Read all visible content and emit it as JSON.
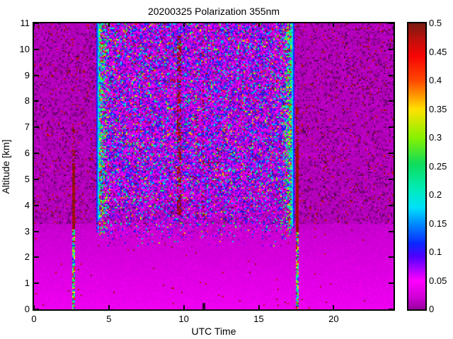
{
  "title": "20200325 Polarization 355nm",
  "axes": {
    "xlabel": "UTC Time",
    "ylabel": "Altitude [km]",
    "x_range": [
      0,
      24
    ],
    "y_range": [
      0,
      11
    ],
    "x_ticks": [
      0,
      5,
      10,
      15,
      20
    ],
    "y_ticks": [
      0,
      1,
      2,
      3,
      4,
      5,
      6,
      7,
      8,
      9,
      10,
      11
    ]
  },
  "colorbar": {
    "range": [
      0,
      0.5
    ],
    "tick_values": [
      0,
      0.05,
      0.1,
      0.15,
      0.2,
      0.25,
      0.3,
      0.35,
      0.4,
      0.45,
      0.5
    ],
    "tick_labels": [
      "0",
      "0.05",
      "0.1",
      "0.15",
      "0.2",
      "0.25",
      "0.3",
      "0.35",
      "0.4",
      "0.45",
      "0.5"
    ]
  },
  "chart_data": {
    "type": "heatmap",
    "title": "20200325 Polarization 355nm",
    "xlabel": "UTC Time",
    "ylabel": "Altitude [km]",
    "x_range": [
      0,
      24
    ],
    "y_range": [
      0,
      11
    ],
    "value_range": [
      0,
      0.5
    ],
    "grid": false,
    "legend": "colorbar right, 0 to 0.5 step 0.05",
    "colormap": "reversed-HSV style: magenta -> purple -> blue -> cyan -> green -> yellow -> orange -> red -> dark red",
    "colormap_stops": [
      [
        0.0,
        150,
        0,
        158
      ],
      [
        0.02,
        205,
        0,
        212
      ],
      [
        0.05,
        255,
        0,
        255
      ],
      [
        0.092,
        80,
        0,
        255
      ],
      [
        0.115,
        10,
        40,
        255
      ],
      [
        0.15,
        0,
        140,
        255
      ],
      [
        0.178,
        0,
        225,
        250
      ],
      [
        0.21,
        0,
        235,
        185
      ],
      [
        0.255,
        15,
        220,
        90
      ],
      [
        0.3,
        135,
        242,
        0
      ],
      [
        0.35,
        255,
        224,
        0
      ],
      [
        0.4,
        255,
        72,
        0
      ],
      [
        0.442,
        248,
        5,
        5
      ],
      [
        0.472,
        190,
        16,
        12
      ],
      [
        0.5,
        120,
        27,
        18
      ]
    ],
    "regions": {
      "quiet_background": {
        "description": "low depolarization magenta background (UTC < 4.2 and UTC > 17.3, altitude > 3.3 km) with sparse dark-red speckles",
        "value_base": 0.004,
        "value_noise": 0.012,
        "dark_dot_p": 0.13,
        "bright_dot_p": 0.1,
        "dark_red_speckle_p": 0.033
      },
      "boundary_layer": {
        "description": "smooth brighter magenta below ~3.3 km across all UTC, brightening toward the ground",
        "alt_top_km": 3.3,
        "value_at_top": 0.012,
        "value_at_surface": 0.035,
        "dark_red_speckle_p": 0.004
      },
      "central_noise": {
        "description": "daytime noisy region: magenta/purple with blue, cyan, green, yellow and red speckles",
        "utc": [
          4.33,
          17.2
        ],
        "alt_full_above_km": 4.8,
        "alt_fade_to_km": 2.4,
        "p_magenta_purple": 0.85,
        "p_blue": 0.3,
        "p_cyan": 0.1,
        "p_green_yellow": 0.06,
        "p_red": 0.025
      },
      "band_left": {
        "description": "green/cyan speckled band with blue-cyan stripe at its left edge, above ~3 km",
        "stripe_utc": [
          4.14,
          4.33
        ],
        "speckle_utc": [
          4.33,
          5.4
        ],
        "alt_bottom_km": 3.0,
        "stripe_values": [
          0.1,
          0.2
        ],
        "speckle_values": [
          0.13,
          0.49
        ]
      },
      "band_right": {
        "description": "green/cyan speckled band with blue-cyan stripe at its right edge, above ~3 km",
        "speckle_utc": [
          16.2,
          17.2
        ],
        "stripe_utc": [
          17.2,
          17.39
        ],
        "alt_bottom_km": 3.0,
        "stripe_values": [
          0.1,
          0.2
        ],
        "speckle_values": [
          0.13,
          0.49
        ]
      },
      "streak_left": {
        "description": "narrow vertical streak: multicolor (cyan/green/yellow) below ~3 km, dark red above up to ~7 km",
        "utc": [
          2.55,
          2.73
        ],
        "multicolor_alt_km": [
          0,
          3.1
        ],
        "dark_red_solid_to_km": 5.6,
        "dark_red_top_km": 7.2
      },
      "streak_right": {
        "description": "narrow vertical streak: multicolor below ~3 km, dark red above up to ~7.8 km",
        "utc": [
          17.45,
          17.63
        ],
        "multicolor_alt_km": [
          0,
          3.0
        ],
        "dark_red_solid_to_km": 6.3,
        "dark_red_top_km": 7.8
      },
      "faint_dark_streaks": [
        {
          "utc": [
            9.55,
            9.78
          ],
          "alt_km": [
            3.6,
            10.5
          ],
          "p": 0.5
        },
        {
          "utc": [
            11.2,
            11.38
          ],
          "alt_km": [
            3.6,
            10.5
          ],
          "p": 0.28
        }
      ],
      "bottom_notch": {
        "utc": [
          11.25,
          11.42
        ],
        "alt_km": [
          0,
          0.25
        ]
      }
    }
  },
  "layout_colors": {
    "axis": "#000000",
    "figure_background": "#ffffff"
  }
}
